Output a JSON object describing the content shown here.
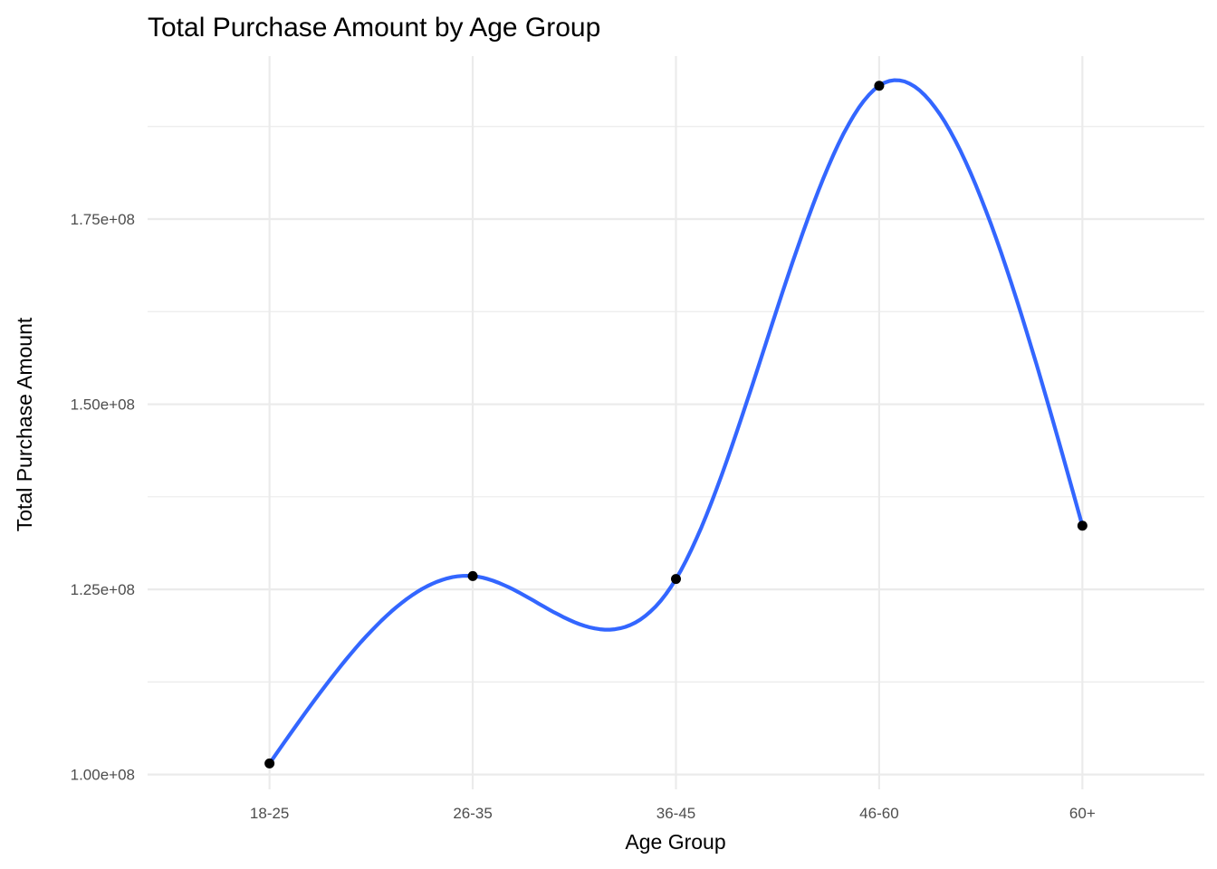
{
  "chart_data": {
    "type": "line",
    "title": "Total Purchase Amount by Age Group",
    "xlabel": "Age Group",
    "ylabel": "Total Purchase Amount",
    "categories": [
      "18-25",
      "26-35",
      "36-45",
      "46-60",
      "60+"
    ],
    "series": [
      {
        "values": [
          101500000,
          126800000,
          126400000,
          193000000,
          133600000
        ]
      }
    ],
    "ylim": [
      98000000,
      197000000
    ],
    "yticks": [
      100000000,
      125000000,
      150000000,
      175000000
    ],
    "ytick_labels": [
      "1.00e+08",
      "1.25e+08",
      "1.50e+08",
      "1.75e+08"
    ],
    "grid": true,
    "smoothed": true,
    "line_color": "#3366ff",
    "point_color": "#000000",
    "grid_color": "#ebebeb"
  }
}
